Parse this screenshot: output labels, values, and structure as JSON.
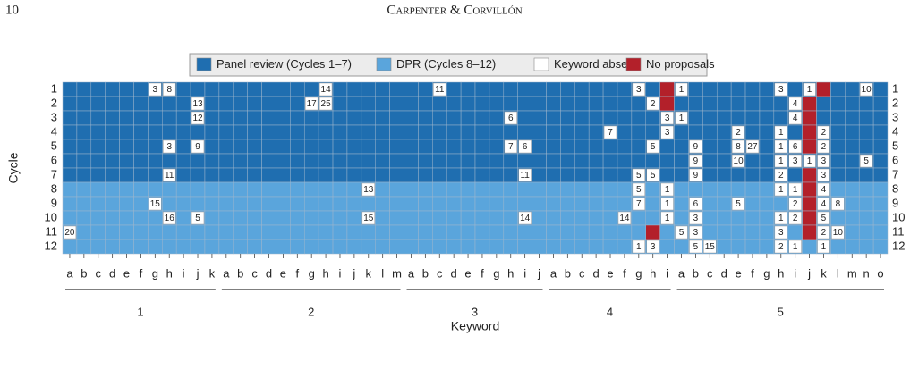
{
  "header": {
    "page_number": "10",
    "running_title": "Carpenter & Corvillón"
  },
  "chart_data": {
    "type": "heatmap",
    "xlabel": "Keyword",
    "ylabel": "Cycle",
    "series": [
      {
        "name": "Panel review (Cycles 1–7)",
        "color": "#1f6eb0",
        "cycles": [
          1,
          7
        ]
      },
      {
        "name": "DPR (Cycles 8–12)",
        "color": "#5aa5dc",
        "cycles": [
          8,
          12
        ]
      },
      {
        "name": "Keyword absent",
        "color": "#ffffff"
      },
      {
        "name": "No proposals",
        "color": "#b3202a"
      }
    ],
    "y_categories": [
      1,
      2,
      3,
      4,
      5,
      6,
      7,
      8,
      9,
      10,
      11,
      12
    ],
    "groups": [
      {
        "name": "1",
        "keywords": [
          "a",
          "b",
          "c",
          "d",
          "e",
          "f",
          "g",
          "h",
          "i",
          "j",
          "k"
        ]
      },
      {
        "name": "2",
        "keywords": [
          "a",
          "b",
          "c",
          "d",
          "e",
          "f",
          "g",
          "h",
          "i",
          "j",
          "k",
          "l",
          "m"
        ]
      },
      {
        "name": "3",
        "keywords": [
          "a",
          "b",
          "c",
          "d",
          "e",
          "f",
          "g",
          "h",
          "i",
          "j"
        ]
      },
      {
        "name": "4",
        "keywords": [
          "a",
          "b",
          "c",
          "d",
          "e",
          "f",
          "g",
          "h",
          "i"
        ]
      },
      {
        "name": "5",
        "keywords": [
          "a",
          "b",
          "c",
          "d",
          "e",
          "f",
          "g",
          "h",
          "i",
          "j",
          "k",
          "l",
          "m",
          "n",
          "o"
        ]
      }
    ],
    "values": [
      [
        null,
        null,
        null,
        null,
        null,
        null,
        3,
        8,
        null,
        null,
        null,
        null,
        null,
        null,
        null,
        null,
        null,
        null,
        14,
        null,
        null,
        null,
        null,
        null,
        null,
        null,
        11,
        null,
        null,
        null,
        null,
        null,
        null,
        null,
        null,
        null,
        null,
        null,
        null,
        null,
        3,
        null,
        null,
        1,
        null,
        null,
        null,
        null,
        null,
        null,
        3,
        null,
        1,
        null,
        null,
        null,
        10,
        null
      ],
      [
        null,
        null,
        null,
        null,
        null,
        null,
        null,
        null,
        null,
        13,
        null,
        null,
        null,
        null,
        null,
        null,
        null,
        17,
        25,
        null,
        null,
        null,
        null,
        null,
        null,
        null,
        null,
        null,
        null,
        null,
        null,
        null,
        null,
        null,
        null,
        null,
        null,
        null,
        null,
        null,
        null,
        2,
        null,
        null,
        null,
        null,
        null,
        null,
        null,
        null,
        null,
        4,
        null,
        null,
        null,
        null,
        null,
        null
      ],
      [
        null,
        null,
        null,
        null,
        null,
        null,
        null,
        null,
        null,
        12,
        null,
        null,
        null,
        null,
        null,
        null,
        null,
        null,
        null,
        null,
        null,
        null,
        null,
        null,
        null,
        null,
        null,
        null,
        null,
        null,
        null,
        6,
        null,
        null,
        null,
        null,
        null,
        null,
        null,
        null,
        null,
        null,
        3,
        1,
        null,
        null,
        null,
        null,
        null,
        null,
        null,
        4,
        null,
        null,
        null,
        null,
        null,
        null
      ],
      [
        null,
        null,
        null,
        null,
        null,
        null,
        null,
        null,
        null,
        null,
        null,
        null,
        null,
        null,
        null,
        null,
        null,
        null,
        null,
        null,
        null,
        null,
        null,
        null,
        null,
        null,
        null,
        null,
        null,
        null,
        null,
        null,
        null,
        null,
        null,
        null,
        null,
        null,
        7,
        null,
        null,
        null,
        3,
        null,
        null,
        null,
        null,
        2,
        null,
        null,
        1,
        null,
        null,
        2,
        null,
        null,
        null,
        null
      ],
      [
        null,
        null,
        null,
        null,
        null,
        null,
        null,
        3,
        null,
        9,
        null,
        null,
        null,
        null,
        null,
        null,
        null,
        null,
        null,
        null,
        null,
        null,
        null,
        null,
        null,
        null,
        null,
        null,
        null,
        null,
        null,
        7,
        6,
        null,
        null,
        null,
        null,
        null,
        null,
        null,
        null,
        5,
        null,
        null,
        9,
        null,
        null,
        8,
        27,
        null,
        1,
        6,
        null,
        2,
        null,
        null,
        null,
        null
      ],
      [
        null,
        null,
        null,
        null,
        null,
        null,
        null,
        null,
        null,
        null,
        null,
        null,
        null,
        null,
        null,
        null,
        null,
        null,
        null,
        null,
        null,
        null,
        null,
        null,
        null,
        null,
        null,
        null,
        null,
        null,
        null,
        null,
        null,
        null,
        null,
        null,
        null,
        null,
        null,
        null,
        null,
        null,
        null,
        null,
        9,
        null,
        null,
        10,
        null,
        null,
        1,
        3,
        1,
        3,
        null,
        null,
        5,
        null
      ],
      [
        null,
        null,
        null,
        null,
        null,
        null,
        null,
        11,
        null,
        null,
        null,
        null,
        null,
        null,
        null,
        null,
        null,
        null,
        null,
        null,
        null,
        null,
        null,
        null,
        null,
        null,
        null,
        null,
        null,
        null,
        null,
        null,
        11,
        null,
        null,
        null,
        null,
        null,
        null,
        null,
        5,
        5,
        null,
        null,
        9,
        null,
        null,
        null,
        null,
        null,
        2,
        null,
        null,
        3,
        null,
        null,
        null,
        null
      ],
      [
        null,
        null,
        null,
        null,
        null,
        null,
        null,
        null,
        null,
        null,
        null,
        null,
        null,
        null,
        null,
        null,
        null,
        null,
        null,
        null,
        null,
        13,
        null,
        null,
        null,
        null,
        null,
        null,
        null,
        null,
        null,
        null,
        null,
        null,
        null,
        null,
        null,
        null,
        null,
        null,
        5,
        null,
        1,
        null,
        null,
        null,
        null,
        null,
        null,
        null,
        1,
        1,
        null,
        4,
        null,
        null,
        null,
        null
      ],
      [
        null,
        null,
        null,
        null,
        null,
        null,
        15,
        null,
        null,
        null,
        null,
        null,
        null,
        null,
        null,
        null,
        null,
        null,
        null,
        null,
        null,
        null,
        null,
        null,
        null,
        null,
        null,
        null,
        null,
        null,
        null,
        null,
        null,
        null,
        null,
        null,
        null,
        null,
        null,
        null,
        7,
        null,
        1,
        null,
        6,
        null,
        null,
        5,
        null,
        null,
        null,
        2,
        null,
        4,
        8,
        null,
        null,
        null
      ],
      [
        null,
        null,
        null,
        null,
        null,
        null,
        null,
        16,
        null,
        5,
        null,
        null,
        null,
        null,
        null,
        null,
        null,
        null,
        null,
        null,
        null,
        15,
        null,
        null,
        null,
        null,
        null,
        null,
        null,
        null,
        null,
        null,
        14,
        null,
        null,
        null,
        null,
        null,
        null,
        14,
        null,
        null,
        1,
        null,
        3,
        null,
        null,
        null,
        null,
        null,
        1,
        2,
        null,
        5,
        null,
        null,
        null,
        null
      ],
      [
        20,
        null,
        null,
        null,
        null,
        null,
        null,
        null,
        null,
        null,
        null,
        null,
        null,
        null,
        null,
        null,
        null,
        null,
        null,
        null,
        null,
        null,
        null,
        null,
        null,
        null,
        null,
        null,
        null,
        null,
        null,
        null,
        null,
        null,
        null,
        null,
        null,
        null,
        null,
        null,
        null,
        null,
        null,
        5,
        3,
        null,
        null,
        null,
        null,
        null,
        3,
        null,
        null,
        2,
        10,
        null,
        null,
        null
      ],
      [
        null,
        null,
        null,
        null,
        null,
        null,
        null,
        null,
        null,
        null,
        null,
        null,
        null,
        null,
        null,
        null,
        null,
        null,
        null,
        null,
        null,
        null,
        null,
        null,
        null,
        null,
        null,
        null,
        null,
        null,
        null,
        null,
        null,
        null,
        null,
        null,
        null,
        null,
        null,
        null,
        1,
        3,
        null,
        null,
        5,
        15,
        null,
        null,
        null,
        null,
        2,
        1,
        null,
        1,
        null,
        null,
        null,
        null
      ]
    ],
    "no_proposals": [
      [
        0,
        42
      ],
      [
        0,
        53
      ],
      [
        1,
        42
      ],
      [
        1,
        52
      ],
      [
        2,
        52
      ],
      [
        3,
        52
      ],
      [
        4,
        52
      ],
      [
        6,
        52
      ],
      [
        7,
        52
      ],
      [
        8,
        52
      ],
      [
        9,
        52
      ],
      [
        10,
        41
      ],
      [
        10,
        52
      ]
    ]
  }
}
